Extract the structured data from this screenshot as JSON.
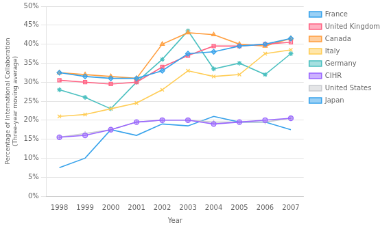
{
  "chart_data": {
    "type": "line",
    "x": [
      1998,
      1999,
      2000,
      2001,
      2002,
      2003,
      2004,
      2005,
      2006,
      2007
    ],
    "series": [
      {
        "name": "France",
        "marker": "diamond",
        "values": [
          32.5,
          31.5,
          31.0,
          31.0,
          33.0,
          37.5,
          38.0,
          39.5,
          40.0,
          41.5
        ]
      },
      {
        "name": "United Kingdom",
        "marker": "square",
        "values": [
          30.5,
          30.0,
          29.5,
          30.0,
          34.0,
          37.0,
          39.5,
          39.5,
          40.0,
          40.5
        ]
      },
      {
        "name": "Canada",
        "marker": "triangle",
        "values": [
          32.5,
          32.0,
          31.5,
          31.0,
          40.0,
          43.0,
          42.5,
          40.0,
          39.5,
          41.5
        ]
      },
      {
        "name": "Italy",
        "marker": "x",
        "values": [
          21.0,
          21.5,
          23.0,
          24.5,
          28.0,
          33.0,
          31.5,
          32.0,
          37.5,
          38.5
        ]
      },
      {
        "name": "Germany",
        "marker": "star",
        "values": [
          28.0,
          26.0,
          23.0,
          30.0,
          36.0,
          43.5,
          33.5,
          35.0,
          32.0,
          37.5
        ]
      },
      {
        "name": "CIHR",
        "marker": "circle",
        "values": [
          15.5,
          16.0,
          17.5,
          19.5,
          20.0,
          20.0,
          19.0,
          19.5,
          20.0,
          20.5
        ]
      },
      {
        "name": "United States",
        "marker": "plus",
        "values": [
          15.5,
          16.5,
          17.5,
          19.5,
          20.0,
          20.0,
          19.5,
          19.5,
          19.5,
          20.5
        ]
      },
      {
        "name": "Japan",
        "values": [
          7.5,
          10.0,
          17.5,
          16.0,
          19.0,
          18.5,
          21.0,
          19.5,
          19.5,
          17.5
        ]
      }
    ],
    "xlabel": "Year",
    "ylabel": "Percentage of International Collaboration\n(Three-year moving average)",
    "xlim": [
      1997.5,
      2007.5
    ],
    "xticks": [
      1998,
      1999,
      2000,
      2001,
      2002,
      2003,
      2004,
      2005,
      2006,
      2007
    ],
    "ylim": [
      0,
      50
    ],
    "yticks": [
      {
        "value": 0,
        "label": "0%"
      },
      {
        "value": 5,
        "label": "5%"
      },
      {
        "value": 10,
        "label": "10%"
      },
      {
        "value": 15,
        "label": "15%"
      },
      {
        "value": 20,
        "label": "20%"
      },
      {
        "value": 25,
        "label": "25%"
      },
      {
        "value": 30,
        "label": "30%"
      },
      {
        "value": 35,
        "label": "35%"
      },
      {
        "value": 40,
        "label": "40%"
      },
      {
        "value": 45,
        "label": "45%"
      },
      {
        "value": 50,
        "label": "50%"
      }
    ],
    "grid": "y",
    "legend": "right"
  }
}
